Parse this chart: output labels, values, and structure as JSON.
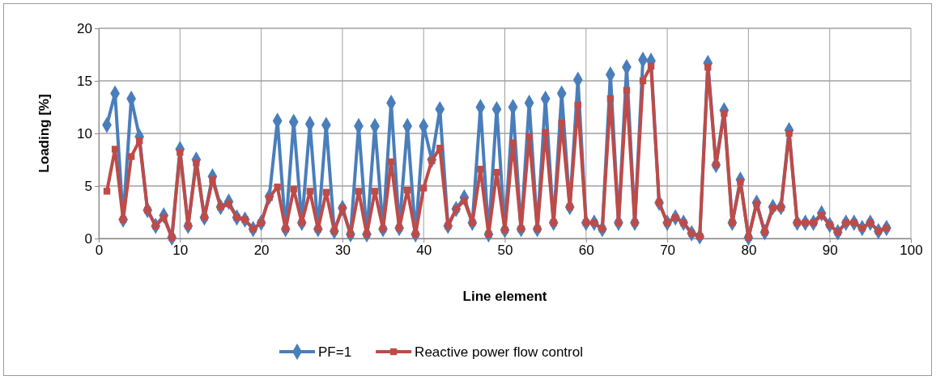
{
  "chart_data": {
    "type": "line",
    "xlabel": "Line element",
    "ylabel": "Loading [%]",
    "x": [
      1,
      2,
      3,
      4,
      5,
      6,
      7,
      8,
      9,
      10,
      11,
      12,
      13,
      14,
      15,
      16,
      17,
      18,
      19,
      20,
      21,
      22,
      23,
      24,
      25,
      26,
      27,
      28,
      29,
      30,
      31,
      32,
      33,
      34,
      35,
      36,
      37,
      38,
      39,
      40,
      41,
      42,
      43,
      44,
      45,
      46,
      47,
      48,
      49,
      50,
      51,
      52,
      53,
      54,
      55,
      56,
      57,
      58,
      59,
      60,
      61,
      62,
      63,
      64,
      65,
      66,
      67,
      68,
      69,
      70,
      71,
      72,
      73,
      74,
      75,
      76,
      77,
      78,
      79,
      80,
      81,
      82,
      83,
      84,
      85,
      86,
      87,
      88,
      89,
      90,
      91,
      92,
      93,
      94,
      95,
      96,
      97
    ],
    "series": [
      {
        "name": "PF=1",
        "color": "#4a7ebb",
        "marker": "diamond",
        "values": [
          10.8,
          13.8,
          1.8,
          13.3,
          9.7,
          2.7,
          1.2,
          2.2,
          0.1,
          8.5,
          1.2,
          7.5,
          2.0,
          5.9,
          3.0,
          3.5,
          2.0,
          1.8,
          0.9,
          1.5,
          4.0,
          11.2,
          0.9,
          11.1,
          1.5,
          10.9,
          0.9,
          10.8,
          0.7,
          2.9,
          0.4,
          10.7,
          0.4,
          10.7,
          0.9,
          12.9,
          1.0,
          10.7,
          0.4,
          10.7,
          7.5,
          12.3,
          1.2,
          2.8,
          3.9,
          1.5,
          12.5,
          0.4,
          12.3,
          0.8,
          12.5,
          0.9,
          12.9,
          0.9,
          13.3,
          1.5,
          13.8,
          3.0,
          15.1,
          1.5,
          1.5,
          0.9,
          15.6,
          1.5,
          16.3,
          1.5,
          17.0,
          16.9,
          3.4,
          1.5,
          2.0,
          1.5,
          0.5,
          0.2,
          16.7,
          7.0,
          12.2,
          1.5,
          5.6,
          0.1,
          3.4,
          0.6,
          3.0,
          3.0,
          10.3,
          1.5,
          1.5,
          1.5,
          2.4,
          1.3,
          0.6,
          1.5,
          1.5,
          1.0,
          1.5,
          0.7,
          1.0
        ]
      },
      {
        "name": "Reactive power flow control",
        "color": "#be4b48",
        "marker": "square",
        "values": [
          4.5,
          8.5,
          1.8,
          7.8,
          9.3,
          2.7,
          1.2,
          2.0,
          0.1,
          8.2,
          1.2,
          7.2,
          2.0,
          5.6,
          3.0,
          3.3,
          2.0,
          1.8,
          0.9,
          1.5,
          3.9,
          4.9,
          0.9,
          4.7,
          1.5,
          4.5,
          0.9,
          4.4,
          0.7,
          2.9,
          0.4,
          4.5,
          0.4,
          4.5,
          0.9,
          7.3,
          1.0,
          4.6,
          0.4,
          4.8,
          7.4,
          8.6,
          1.2,
          2.8,
          3.6,
          1.5,
          6.6,
          0.4,
          6.3,
          0.8,
          9.1,
          0.9,
          9.7,
          0.9,
          10.1,
          1.5,
          11.0,
          3.0,
          12.7,
          1.5,
          1.5,
          0.9,
          13.3,
          1.5,
          14.1,
          1.5,
          15.0,
          16.4,
          3.4,
          1.5,
          2.0,
          1.5,
          0.5,
          0.2,
          16.3,
          7.0,
          11.9,
          1.5,
          5.4,
          0.1,
          3.3,
          0.6,
          2.9,
          2.9,
          10.0,
          1.5,
          1.5,
          1.5,
          2.2,
          1.3,
          0.6,
          1.5,
          1.5,
          1.0,
          1.5,
          0.7,
          1.0
        ]
      }
    ],
    "xlim": [
      0,
      100
    ],
    "xticks": [
      0,
      10,
      20,
      30,
      40,
      50,
      60,
      70,
      80,
      90,
      100
    ],
    "ylim": [
      0,
      20
    ],
    "yticks": [
      0,
      5,
      10,
      15,
      20
    ],
    "grid": true,
    "legend": "bottom",
    "line_style": "solid"
  }
}
